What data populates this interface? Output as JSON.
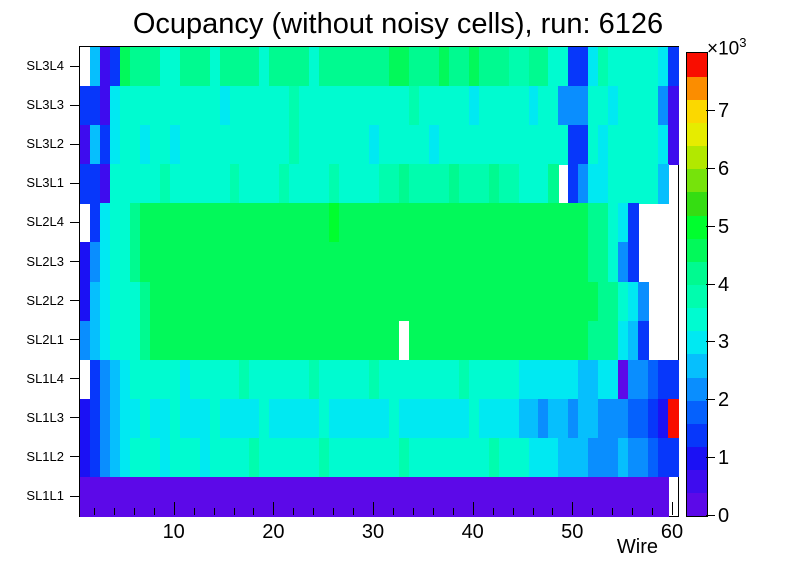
{
  "title": "Ocupancy (without noisy cells), run: 6126",
  "x_axis": {
    "label": "Wire",
    "major_ticks": [
      10,
      20,
      30,
      40,
      50,
      60
    ],
    "minor_tick_step": 2,
    "min": 0.5,
    "max": 60.5
  },
  "y_axis": {
    "labels_top_to_bottom": [
      "SL3L4",
      "SL3L3",
      "SL3L2",
      "SL3L1",
      "SL2L4",
      "SL2L3",
      "SL2L2",
      "SL2L1",
      "SL1L4",
      "SL1L3",
      "SL1L2",
      "SL1L1"
    ]
  },
  "colorbar": {
    "multiplier_text": "×10",
    "exponent_text": "3",
    "tick_values": [
      0,
      1,
      2,
      3,
      4,
      5,
      6,
      7
    ],
    "max_value": 8000,
    "value_per_band": 400
  },
  "palette": {
    "codes": "abcdefghijklmnopqrst",
    "colors": [
      "#5c09e8",
      "#3e0cee",
      "#1b11f4",
      "#0737fa",
      "#0561fd",
      "#0a8efe",
      "#06bffd",
      "#00e9f2",
      "#00fbd0",
      "#00fdae",
      "#00fa90",
      "#02f95a",
      "#00fe2e",
      "#35dd12",
      "#76e30b",
      "#b2e800",
      "#e6ec00",
      "#fbd800",
      "#fb8d00",
      "#f90d00"
    ],
    "empty_code": ".",
    "empty_color": "#ffffff"
  },
  "chart_data": {
    "type": "heatmap",
    "title": "Ocupancy (without noisy cells), run: 6126",
    "xlabel": "Wire",
    "x_range": [
      1,
      60
    ],
    "zlabel_scale": "counts ×10³, 0 to 8, 20 color bands of 400 counts each",
    "rows_top_to_bottom": [
      "SL3L4",
      "SL3L3",
      "SL3L2",
      "SL3L1",
      "SL2L4",
      "SL2L3",
      "SL2L2",
      "SL2L1",
      "SL1L4",
      "SL1L3",
      "SL1L2",
      "SL1L1"
    ],
    "legend_note": "each code letter a-t maps to palette band (value approx (band_index+0.5)*400 counts); '.' = empty/white bin",
    "grid_codes": [
      ".gbdlkkkiikkkikkkkikkkkikkkkkkkllkkklkklkkkjjkkiiddhjiiiiihd",
      "ddbhiiiiiiiiiihiiiiiijiiiiiiiiiiijiiiiihiiiiihiifffiihiiiifb",
      "bgdhiihiihiiiiiiiiiiijiiiiiiihiiiiihiiiiiiiiiiiiiddihiiiiihb",
      "ddbiiiiijiiiiiijiiiijiiiijiiiijjkjjjjkjjjkjjiiik.dfhhiiiiig.",
      ".dhiiklllllllllllllllllllmlllllllllllllllllllllllllkkihd....",
      "cfhiiklllllllllllllllllllllllllllllllllllllllllllllkkifd....",
      "cghiiiklllllllllllllllllllllllllllllllllllllllllllllkkihf...",
      "fghiiiklllllllllllllllllllllllll.llllllllllllllllllkkkhgd...",
      ".dfghiiiiihiiiiijiiiiiijiiiiijiiiiiiiijiiiiihhhhhhgghhaffedd",
      "cdfghhihhihhhihhhhihhhhhihhhhhhihhhhhhhihhhhggfggfggfffeedct",
      "cdfghiiihiiihiiiijiiiiiijiiiiiiijiiiiiiiijiiihhhgggfffgffeddd",
      "aaaaaaaaaaaaaaaaaaaaaaaaaaaaaaaaaaaaaaaaaaaaaaaaaaaaaaaaaaa."
    ]
  },
  "geometry_note": "plot frame 79,46 to 677,515; colorbar 686,52 to 706,515"
}
